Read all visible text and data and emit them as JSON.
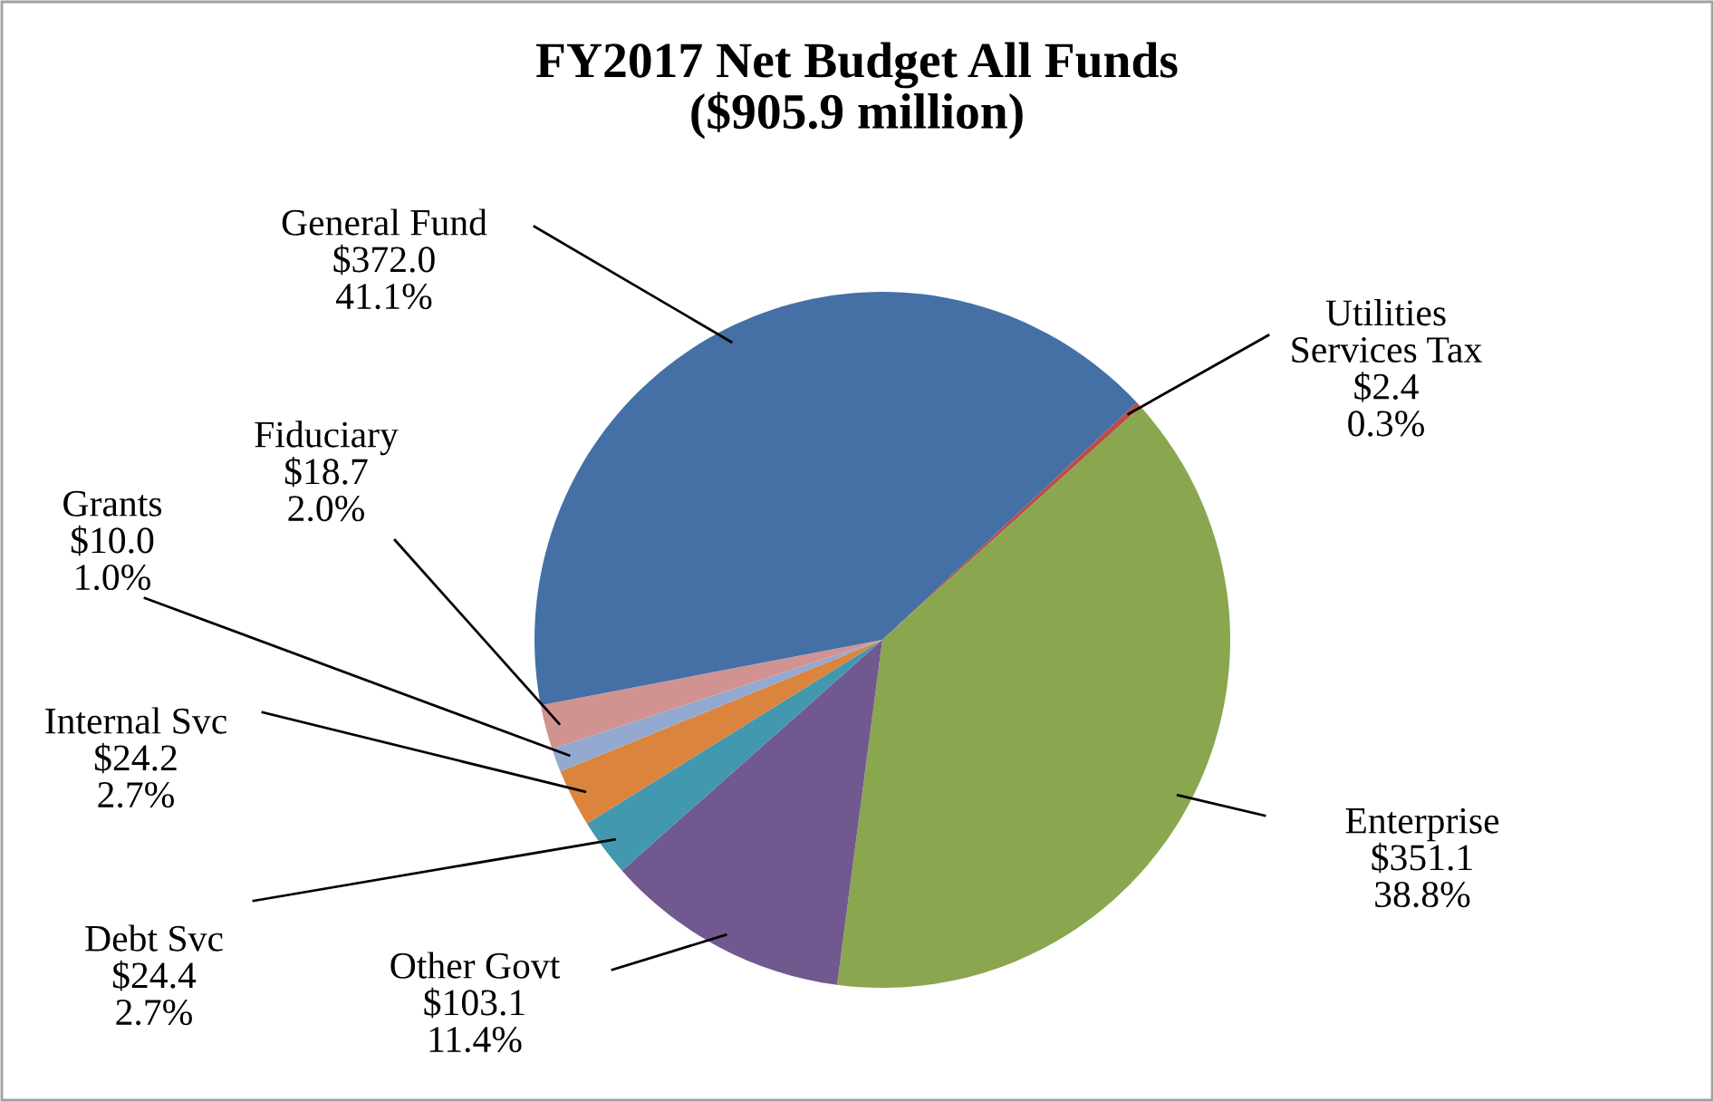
{
  "chart_data": {
    "type": "pie",
    "title": "FY2017 Net Budget All Funds\n($905.9 million)",
    "categories": [
      "Utilities\nServices Tax",
      "Enterprise",
      "Other Govt",
      "Debt Svc",
      "Internal Svc",
      "Grants",
      "Fiduciary",
      "General Fund"
    ],
    "values": [
      2.4,
      351.1,
      103.1,
      24.4,
      24.2,
      10.0,
      18.7,
      372.0
    ],
    "colors": [
      "#be4b48",
      "#8aa64f",
      "#71588f",
      "#4198af",
      "#db843d",
      "#93a9cf",
      "#d19392",
      "#4470a5"
    ],
    "value_labels": [
      "$2.4\n0.3%",
      "$351.1\n38.8%",
      "$103.1\n11.4%",
      "$24.4\n2.7%",
      "$24.2\n2.7%",
      "$10.0\n1.0%",
      "$18.7\n2.0%",
      "$372.0\n41.1%"
    ],
    "legend": false
  }
}
